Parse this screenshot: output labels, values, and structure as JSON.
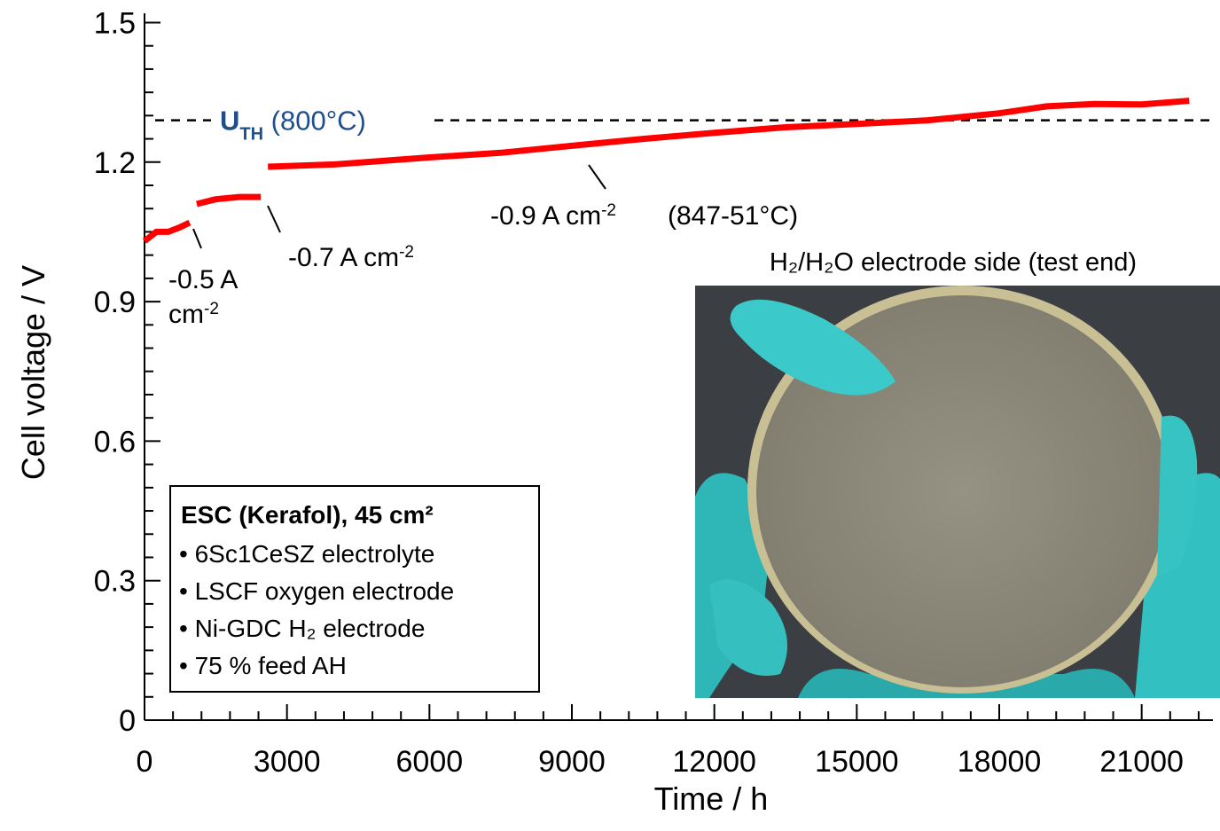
{
  "chart_data": {
    "type": "line",
    "x_label": "Time / h",
    "y_label": "Cell voltage / V",
    "x": [
      0,
      250,
      500,
      750,
      950,
      1050,
      1100,
      1500,
      2000,
      2450,
      2550,
      2600,
      4000,
      6000,
      7500,
      9000,
      10500,
      12000,
      13500,
      15000,
      16500,
      18000,
      19000,
      20000,
      21000,
      22000
    ],
    "series": [
      {
        "color": "#ff0000",
        "values": [
          1.03,
          1.05,
          1.05,
          1.06,
          1.07,
          null,
          1.11,
          1.12,
          1.125,
          1.125,
          null,
          1.19,
          1.195,
          1.21,
          1.22,
          1.235,
          1.25,
          1.263,
          1.275,
          1.282,
          1.29,
          1.305,
          1.32,
          1.325,
          1.324,
          1.332
        ]
      }
    ],
    "xlim": [
      0,
      22500
    ],
    "ylim": [
      0,
      1.52
    ],
    "xticks": [
      0,
      3000,
      6000,
      9000,
      12000,
      15000,
      18000,
      21000
    ],
    "yticks": [
      0,
      0.3,
      0.6,
      0.9,
      1.2,
      1.5
    ],
    "reference_line": {
      "value": 1.29,
      "color": "#000000",
      "label": {
        "main": "U",
        "sub": "TH",
        "rest": " (800°C)"
      },
      "label_color": "#1f4e8c"
    },
    "annotations": [
      {
        "text": "-0.5 A"
      },
      {
        "text": "cm",
        "sup": "-2"
      },
      {
        "text": "-0.7 A cm",
        "sup": "-2"
      },
      {
        "text": "-0.9 A cm",
        "sup": "-2"
      },
      {
        "text": "(847-51°C)"
      }
    ],
    "info_box": {
      "title": "ESC (Kerafol), 45 cm²",
      "items": [
        "• 6Sc1CeSZ electrolyte",
        "• LSCF oxygen electrode",
        "• Ni-GDC H₂ electrode",
        "• 75 % feed AH"
      ],
      "color": "#1f4e8c"
    },
    "photo_title": "H₂/H₂O electrode side (test end)"
  }
}
